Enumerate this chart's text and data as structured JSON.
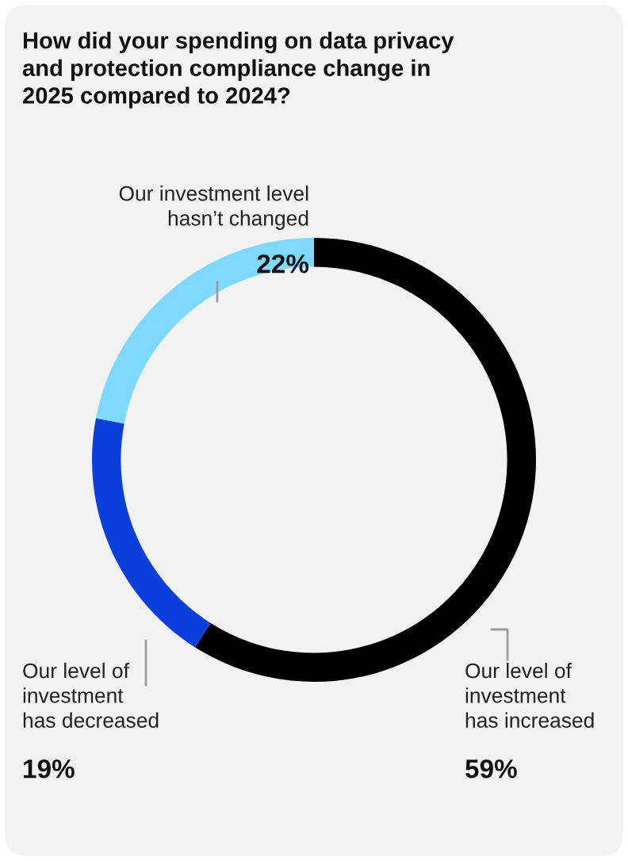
{
  "chart_data": {
    "type": "donut",
    "title": "How did your spending on data privacy\nand protection compliance change in\n2025 compared to 2024?",
    "categories": [
      "Our level of\ninvestment\nhas increased",
      "Our level of\ninvestment\nhas decreased",
      "Our investment level\nhasn’t changed"
    ],
    "values": [
      59,
      19,
      22
    ],
    "colors": [
      "#000000",
      "#0a3fdc",
      "#7fd8ff"
    ],
    "value_labels": [
      "59%",
      "19%",
      "22%"
    ],
    "legend": false
  }
}
